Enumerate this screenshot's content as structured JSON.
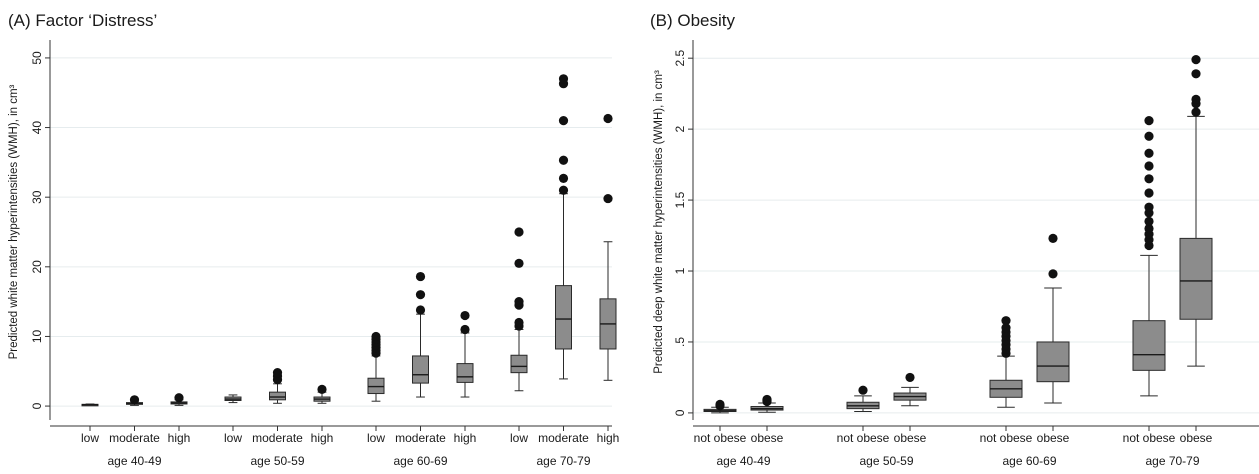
{
  "chart_data": [
    {
      "type": "box",
      "title": "(A) Factor ‘Distress’",
      "ylabel": "Predicted white matter hyperintensities (WMH), in cm³",
      "ylim": [
        -2,
        52
      ],
      "yticks": [
        0,
        10,
        20,
        30,
        40,
        50
      ],
      "ytick_labels": [
        "0",
        "10",
        "20",
        "30",
        "40",
        "50"
      ],
      "grid": true,
      "groups": [
        {
          "label": "age 40-49",
          "boxes": [
            {
              "label": "low",
              "min": 0.1,
              "q1": 0.15,
              "median": 0.2,
              "q3": 0.25,
              "max": 0.3,
              "outliers": []
            },
            {
              "label": "moderate",
              "min": 0.1,
              "q1": 0.25,
              "median": 0.35,
              "q3": 0.5,
              "max": 0.7,
              "outliers": [
                0.9
              ]
            },
            {
              "label": "high",
              "min": 0.1,
              "q1": 0.3,
              "median": 0.45,
              "q3": 0.6,
              "max": 0.9,
              "outliers": [
                1.2
              ]
            }
          ]
        },
        {
          "label": "age 50-59",
          "boxes": [
            {
              "label": "low",
              "min": 0.5,
              "q1": 0.8,
              "median": 1.0,
              "q3": 1.3,
              "max": 1.6,
              "outliers": []
            },
            {
              "label": "moderate",
              "min": 0.4,
              "q1": 0.9,
              "median": 1.3,
              "q3": 2.0,
              "max": 3.2,
              "outliers": [
                3.8,
                4.3,
                4.8
              ]
            },
            {
              "label": "high",
              "min": 0.4,
              "q1": 0.7,
              "median": 1.0,
              "q3": 1.3,
              "max": 2.0,
              "outliers": [
                2.4
              ]
            }
          ]
        },
        {
          "label": "age 60-69",
          "boxes": [
            {
              "label": "low",
              "min": 0.7,
              "q1": 1.8,
              "median": 2.8,
              "q3": 4.0,
              "max": 7.2,
              "outliers": [
                7.6,
                8.0,
                8.4,
                8.8,
                9.2,
                9.6,
                10.0
              ]
            },
            {
              "label": "moderate",
              "min": 1.3,
              "q1": 3.3,
              "median": 4.5,
              "q3": 7.2,
              "max": 13.2,
              "outliers": [
                13.8,
                16.0,
                18.6
              ]
            },
            {
              "label": "high",
              "min": 1.3,
              "q1": 3.4,
              "median": 4.2,
              "q3": 6.1,
              "max": 10.5,
              "outliers": [
                11.0,
                13.0
              ]
            }
          ]
        },
        {
          "label": "age 70-79",
          "boxes": [
            {
              "label": "low",
              "min": 2.2,
              "q1": 4.8,
              "median": 5.7,
              "q3": 7.3,
              "max": 11.0,
              "outliers": [
                11.5,
                12.0,
                14.5,
                15.0,
                20.5,
                25.0
              ]
            },
            {
              "label": "moderate",
              "min": 3.9,
              "q1": 8.2,
              "median": 12.5,
              "q3": 17.3,
              "max": 30.5,
              "outliers": [
                31.0,
                32.7,
                35.3,
                41.0,
                46.3,
                47.0
              ]
            },
            {
              "label": "high",
              "min": 3.7,
              "q1": 8.2,
              "median": 11.8,
              "q3": 15.4,
              "max": 23.6,
              "outliers": [
                29.8,
                41.3
              ]
            }
          ]
        }
      ]
    },
    {
      "type": "box",
      "title": "(B) Obesity",
      "ylabel": "Predicted deep white matter hyperintensities (WMH), in cm³",
      "ylim": [
        -0.05,
        2.6
      ],
      "yticks": [
        0,
        0.5,
        1,
        1.5,
        2,
        2.5
      ],
      "ytick_labels": [
        "0",
        ".5",
        "1",
        "1.5",
        "2",
        "2.5"
      ],
      "grid": true,
      "groups": [
        {
          "label": "age 40-49",
          "boxes": [
            {
              "label": "not obese",
              "min": 0.0,
              "q1": 0.01,
              "median": 0.015,
              "q3": 0.025,
              "max": 0.04,
              "outliers": [
                0.05,
                0.06
              ]
            },
            {
              "label": "obese",
              "min": 0.005,
              "q1": 0.02,
              "median": 0.03,
              "q3": 0.045,
              "max": 0.07,
              "outliers": [
                0.08,
                0.09,
                0.095
              ]
            }
          ]
        },
        {
          "label": "age 50-59",
          "boxes": [
            {
              "label": "not obese",
              "min": 0.01,
              "q1": 0.03,
              "median": 0.05,
              "q3": 0.075,
              "max": 0.12,
              "outliers": [
                0.16
              ]
            },
            {
              "label": "obese",
              "min": 0.05,
              "q1": 0.09,
              "median": 0.115,
              "q3": 0.14,
              "max": 0.18,
              "outliers": [
                0.25
              ]
            }
          ]
        },
        {
          "label": "age 60-69",
          "boxes": [
            {
              "label": "not obese",
              "min": 0.04,
              "q1": 0.11,
              "median": 0.17,
              "q3": 0.23,
              "max": 0.4,
              "outliers": [
                0.42,
                0.45,
                0.48,
                0.51,
                0.54,
                0.57,
                0.6,
                0.65
              ]
            },
            {
              "label": "obese",
              "min": 0.07,
              "q1": 0.22,
              "median": 0.33,
              "q3": 0.5,
              "max": 0.88,
              "outliers": [
                0.98,
                1.23
              ]
            }
          ]
        },
        {
          "label": "age 70-79",
          "boxes": [
            {
              "label": "not obese",
              "min": 0.12,
              "q1": 0.3,
              "median": 0.41,
              "q3": 0.65,
              "max": 1.11,
              "outliers": [
                1.18,
                1.22,
                1.26,
                1.3,
                1.35,
                1.41,
                1.45,
                1.55,
                1.65,
                1.74,
                1.83,
                1.95,
                2.06
              ]
            },
            {
              "label": "obese",
              "min": 0.33,
              "q1": 0.66,
              "median": 0.93,
              "q3": 1.23,
              "max": 2.09,
              "outliers": [
                2.12,
                2.18,
                2.21,
                2.39,
                2.49
              ]
            }
          ]
        }
      ]
    }
  ],
  "colors": {
    "box_fill": "#8c8c8c",
    "box_stroke": "#2a2a2a",
    "median": "#1a1a1a",
    "whisker": "#2a2a2a",
    "outlier": "#111111",
    "grid": "#e6ecee",
    "axis": "#333333"
  }
}
